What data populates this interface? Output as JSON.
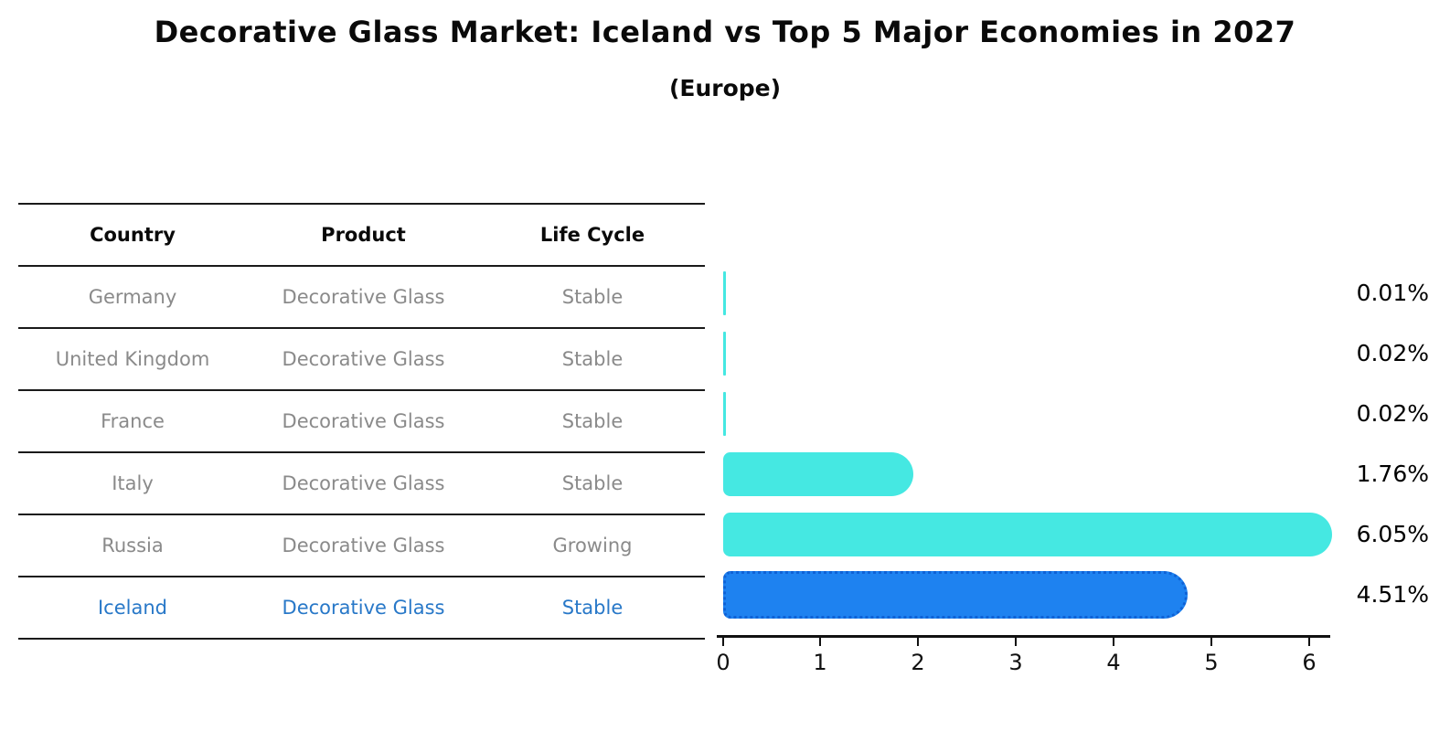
{
  "header": {
    "title": "Decorative Glass Market: Iceland vs Top 5 Major Economies in 2027",
    "subtitle": "(Europe)"
  },
  "table": {
    "columns": [
      "Country",
      "Product",
      "Life Cycle"
    ],
    "rows": [
      {
        "country": "Germany",
        "product": "Decorative Glass",
        "life_cycle": "Stable"
      },
      {
        "country": "United Kingdom",
        "product": "Decorative Glass",
        "life_cycle": "Stable"
      },
      {
        "country": "France",
        "product": "Decorative Glass",
        "life_cycle": "Stable"
      },
      {
        "country": "Italy",
        "product": "Decorative Glass",
        "life_cycle": "Stable"
      },
      {
        "country": "Russia",
        "product": "Decorative Glass",
        "life_cycle": "Growing"
      },
      {
        "country": "Iceland",
        "product": "Decorative Glass",
        "life_cycle": "Stable"
      }
    ]
  },
  "chart_data": {
    "type": "bar",
    "orientation": "horizontal",
    "title": "Decorative Glass Market: Iceland vs Top 5 Major Economies in 2027",
    "subtitle": "(Europe)",
    "categories": [
      "Germany",
      "United Kingdom",
      "France",
      "Italy",
      "Russia",
      "Iceland"
    ],
    "values": [
      0.01,
      0.02,
      0.02,
      1.76,
      6.05,
      4.51
    ],
    "value_labels": [
      "0.01%",
      "0.02%",
      "0.02%",
      "1.76%",
      "6.05%",
      "4.51%"
    ],
    "x_ticks": [
      "0",
      "1",
      "2",
      "3",
      "4",
      "5",
      "6"
    ],
    "xlim": [
      0,
      6.25
    ],
    "grid": false,
    "legend": false,
    "highlight_category": "Iceland",
    "colors": {
      "bar_default": "#45e8e2",
      "bar_highlight": "#1e82f0",
      "bar_highlight_border": "#0f62d6",
      "row_text": "#8a8a8a",
      "highlight_text": "#2878c8",
      "axis": "#111111"
    }
  }
}
